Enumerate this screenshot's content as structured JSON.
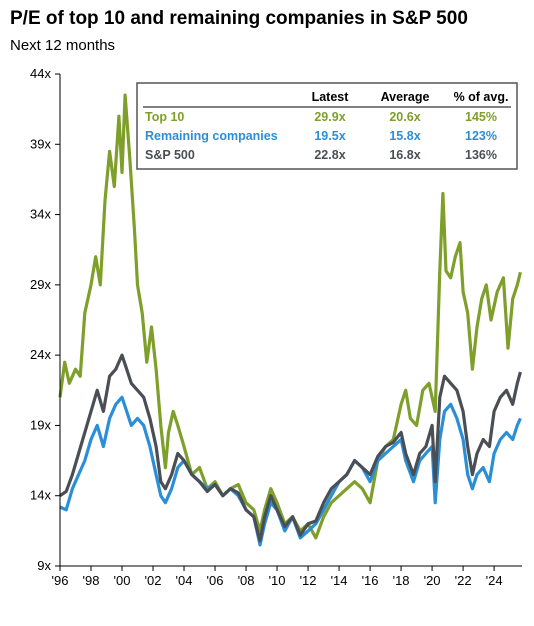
{
  "title": "P/E of top 10 and remaining companies in S&P 500",
  "subtitle": "Next 12 months",
  "colors": {
    "top10": "#7f9f2b",
    "remaining": "#2b8fd6",
    "sp500": "#4a4f55"
  },
  "table": {
    "headers": [
      "Latest",
      "Average",
      "% of avg."
    ],
    "rows": [
      {
        "label": "Top 10",
        "latest": "29.9x",
        "average": "20.6x",
        "pct": "145%",
        "color": "#7f9f2b"
      },
      {
        "label": "Remaining companies",
        "latest": "19.5x",
        "average": "15.8x",
        "pct": "123%",
        "color": "#2b8fd6"
      },
      {
        "label": "S&P 500",
        "latest": "22.8x",
        "average": "16.8x",
        "pct": "136%",
        "color": "#4a4f55"
      }
    ]
  },
  "chart_data": {
    "type": "line",
    "title": "P/E of top 10 and remaining companies in S&P 500",
    "subtitle": "Next 12 months",
    "ylim": [
      9,
      44
    ],
    "xlim": [
      1996,
      2025.8
    ],
    "yticks": [
      9,
      14,
      19,
      24,
      29,
      34,
      39,
      44
    ],
    "ytick_labels": [
      "9x",
      "14x",
      "19x",
      "24x",
      "29x",
      "34x",
      "39x",
      "44x"
    ],
    "xticks": [
      1996,
      1998,
      2000,
      2002,
      2004,
      2006,
      2008,
      2010,
      2012,
      2014,
      2016,
      2018,
      2020,
      2022,
      2024
    ],
    "xtick_labels": [
      "'96",
      "'98",
      "'00",
      "'02",
      "'04",
      "'06",
      "'08",
      "'10",
      "'12",
      "'14",
      "'16",
      "'18",
      "'20",
      "'22",
      "'24"
    ],
    "series": [
      {
        "name": "Top 10",
        "color": "#7f9f2b",
        "points": [
          [
            1996.0,
            21.0
          ],
          [
            1996.3,
            23.5
          ],
          [
            1996.6,
            22.0
          ],
          [
            1997.0,
            23.0
          ],
          [
            1997.3,
            22.5
          ],
          [
            1997.6,
            27.0
          ],
          [
            1998.0,
            29.0
          ],
          [
            1998.3,
            31.0
          ],
          [
            1998.6,
            29.0
          ],
          [
            1998.9,
            35.0
          ],
          [
            1999.2,
            38.5
          ],
          [
            1999.5,
            36.0
          ],
          [
            1999.8,
            41.0
          ],
          [
            2000.0,
            37.0
          ],
          [
            2000.2,
            42.5
          ],
          [
            2000.5,
            38.0
          ],
          [
            2000.8,
            33.0
          ],
          [
            2001.0,
            29.0
          ],
          [
            2001.3,
            27.0
          ],
          [
            2001.6,
            23.5
          ],
          [
            2001.9,
            26.0
          ],
          [
            2002.2,
            23.0
          ],
          [
            2002.5,
            19.0
          ],
          [
            2002.8,
            16.0
          ],
          [
            2003.0,
            18.5
          ],
          [
            2003.3,
            20.0
          ],
          [
            2003.6,
            19.0
          ],
          [
            2004.0,
            17.5
          ],
          [
            2004.5,
            15.5
          ],
          [
            2005.0,
            16.0
          ],
          [
            2005.5,
            14.5
          ],
          [
            2006.0,
            15.0
          ],
          [
            2006.5,
            14.0
          ],
          [
            2007.0,
            14.5
          ],
          [
            2007.5,
            14.8
          ],
          [
            2008.0,
            13.5
          ],
          [
            2008.5,
            13.0
          ],
          [
            2008.9,
            11.5
          ],
          [
            2009.2,
            13.0
          ],
          [
            2009.6,
            14.5
          ],
          [
            2010.0,
            13.5
          ],
          [
            2010.5,
            12.0
          ],
          [
            2011.0,
            12.5
          ],
          [
            2011.5,
            11.5
          ],
          [
            2012.0,
            12.0
          ],
          [
            2012.5,
            11.0
          ],
          [
            2013.0,
            12.5
          ],
          [
            2013.5,
            13.5
          ],
          [
            2014.0,
            14.0
          ],
          [
            2014.5,
            14.5
          ],
          [
            2015.0,
            15.0
          ],
          [
            2015.5,
            14.5
          ],
          [
            2016.0,
            13.5
          ],
          [
            2016.5,
            16.5
          ],
          [
            2017.0,
            17.5
          ],
          [
            2017.5,
            18.0
          ],
          [
            2018.0,
            20.5
          ],
          [
            2018.3,
            21.5
          ],
          [
            2018.6,
            19.5
          ],
          [
            2019.0,
            19.0
          ],
          [
            2019.4,
            21.5
          ],
          [
            2019.8,
            22.0
          ],
          [
            2020.2,
            20.0
          ],
          [
            2020.5,
            30.0
          ],
          [
            2020.7,
            35.5
          ],
          [
            2020.9,
            30.0
          ],
          [
            2021.2,
            29.5
          ],
          [
            2021.5,
            31.0
          ],
          [
            2021.8,
            32.0
          ],
          [
            2022.0,
            28.5
          ],
          [
            2022.3,
            27.0
          ],
          [
            2022.6,
            23.0
          ],
          [
            2022.9,
            26.0
          ],
          [
            2023.2,
            28.0
          ],
          [
            2023.5,
            29.0
          ],
          [
            2023.8,
            26.5
          ],
          [
            2024.2,
            28.5
          ],
          [
            2024.6,
            29.5
          ],
          [
            2024.9,
            24.5
          ],
          [
            2025.2,
            28.0
          ],
          [
            2025.5,
            29.0
          ],
          [
            2025.7,
            29.9
          ]
        ]
      },
      {
        "name": "Remaining companies",
        "color": "#2b8fd6",
        "points": [
          [
            1996.0,
            13.2
          ],
          [
            1996.4,
            13.0
          ],
          [
            1996.8,
            14.5
          ],
          [
            1997.2,
            15.5
          ],
          [
            1997.6,
            16.5
          ],
          [
            1998.0,
            18.0
          ],
          [
            1998.4,
            19.0
          ],
          [
            1998.8,
            17.5
          ],
          [
            1999.2,
            19.5
          ],
          [
            1999.6,
            20.5
          ],
          [
            2000.0,
            21.0
          ],
          [
            2000.3,
            20.0
          ],
          [
            2000.6,
            19.0
          ],
          [
            2001.0,
            19.5
          ],
          [
            2001.4,
            19.0
          ],
          [
            2001.8,
            17.5
          ],
          [
            2002.2,
            15.5
          ],
          [
            2002.5,
            14.0
          ],
          [
            2002.8,
            13.5
          ],
          [
            2003.2,
            14.5
          ],
          [
            2003.6,
            16.0
          ],
          [
            2004.0,
            16.5
          ],
          [
            2004.5,
            15.5
          ],
          [
            2005.0,
            15.0
          ],
          [
            2005.5,
            14.5
          ],
          [
            2006.0,
            14.8
          ],
          [
            2006.5,
            14.0
          ],
          [
            2007.0,
            14.5
          ],
          [
            2007.5,
            14.0
          ],
          [
            2008.0,
            13.0
          ],
          [
            2008.5,
            12.5
          ],
          [
            2008.9,
            10.5
          ],
          [
            2009.2,
            12.0
          ],
          [
            2009.6,
            13.5
          ],
          [
            2010.0,
            13.0
          ],
          [
            2010.5,
            11.5
          ],
          [
            2011.0,
            12.5
          ],
          [
            2011.5,
            11.0
          ],
          [
            2012.0,
            11.5
          ],
          [
            2012.5,
            12.0
          ],
          [
            2013.0,
            13.0
          ],
          [
            2013.5,
            14.0
          ],
          [
            2014.0,
            15.0
          ],
          [
            2014.5,
            15.5
          ],
          [
            2015.0,
            16.5
          ],
          [
            2015.5,
            16.0
          ],
          [
            2016.0,
            15.0
          ],
          [
            2016.5,
            16.5
          ],
          [
            2017.0,
            17.0
          ],
          [
            2017.5,
            17.5
          ],
          [
            2018.0,
            18.0
          ],
          [
            2018.3,
            16.5
          ],
          [
            2018.8,
            15.0
          ],
          [
            2019.2,
            16.5
          ],
          [
            2019.6,
            17.0
          ],
          [
            2020.0,
            17.5
          ],
          [
            2020.2,
            13.5
          ],
          [
            2020.5,
            18.0
          ],
          [
            2020.8,
            20.0
          ],
          [
            2021.2,
            20.5
          ],
          [
            2021.6,
            19.5
          ],
          [
            2022.0,
            18.0
          ],
          [
            2022.3,
            15.5
          ],
          [
            2022.6,
            14.5
          ],
          [
            2022.9,
            15.5
          ],
          [
            2023.3,
            16.0
          ],
          [
            2023.7,
            15.0
          ],
          [
            2024.0,
            17.0
          ],
          [
            2024.4,
            18.0
          ],
          [
            2024.8,
            18.5
          ],
          [
            2025.2,
            18.0
          ],
          [
            2025.5,
            19.0
          ],
          [
            2025.7,
            19.5
          ]
        ]
      },
      {
        "name": "S&P 500",
        "color": "#4a4f55",
        "points": [
          [
            1996.0,
            14.0
          ],
          [
            1996.4,
            14.3
          ],
          [
            1996.8,
            15.5
          ],
          [
            1997.2,
            17.0
          ],
          [
            1997.6,
            18.5
          ],
          [
            1998.0,
            20.0
          ],
          [
            1998.4,
            21.5
          ],
          [
            1998.8,
            20.0
          ],
          [
            1999.2,
            22.5
          ],
          [
            1999.6,
            23.0
          ],
          [
            2000.0,
            24.0
          ],
          [
            2000.3,
            23.0
          ],
          [
            2000.6,
            22.0
          ],
          [
            2001.0,
            21.5
          ],
          [
            2001.4,
            21.0
          ],
          [
            2001.8,
            19.5
          ],
          [
            2002.2,
            17.5
          ],
          [
            2002.5,
            15.0
          ],
          [
            2002.8,
            14.5
          ],
          [
            2003.2,
            15.5
          ],
          [
            2003.6,
            17.0
          ],
          [
            2004.0,
            16.5
          ],
          [
            2004.5,
            15.5
          ],
          [
            2005.0,
            15.0
          ],
          [
            2005.5,
            14.3
          ],
          [
            2006.0,
            14.8
          ],
          [
            2006.5,
            14.0
          ],
          [
            2007.0,
            14.5
          ],
          [
            2007.5,
            14.2
          ],
          [
            2008.0,
            13.0
          ],
          [
            2008.5,
            12.5
          ],
          [
            2008.9,
            10.8
          ],
          [
            2009.2,
            12.5
          ],
          [
            2009.6,
            14.0
          ],
          [
            2010.0,
            13.0
          ],
          [
            2010.5,
            11.8
          ],
          [
            2011.0,
            12.5
          ],
          [
            2011.5,
            11.2
          ],
          [
            2012.0,
            12.0
          ],
          [
            2012.5,
            12.2
          ],
          [
            2013.0,
            13.5
          ],
          [
            2013.5,
            14.5
          ],
          [
            2014.0,
            15.0
          ],
          [
            2014.5,
            15.5
          ],
          [
            2015.0,
            16.5
          ],
          [
            2015.5,
            16.0
          ],
          [
            2016.0,
            15.5
          ],
          [
            2016.5,
            16.8
          ],
          [
            2017.0,
            17.5
          ],
          [
            2017.5,
            17.8
          ],
          [
            2018.0,
            18.5
          ],
          [
            2018.3,
            17.0
          ],
          [
            2018.8,
            15.5
          ],
          [
            2019.2,
            17.0
          ],
          [
            2019.6,
            17.5
          ],
          [
            2020.0,
            19.0
          ],
          [
            2020.2,
            15.0
          ],
          [
            2020.5,
            21.0
          ],
          [
            2020.8,
            22.5
          ],
          [
            2021.2,
            22.0
          ],
          [
            2021.6,
            21.5
          ],
          [
            2022.0,
            20.0
          ],
          [
            2022.3,
            17.5
          ],
          [
            2022.6,
            15.5
          ],
          [
            2022.9,
            17.0
          ],
          [
            2023.3,
            18.0
          ],
          [
            2023.7,
            17.5
          ],
          [
            2024.0,
            20.0
          ],
          [
            2024.4,
            21.0
          ],
          [
            2024.8,
            21.5
          ],
          [
            2025.2,
            20.5
          ],
          [
            2025.5,
            22.0
          ],
          [
            2025.7,
            22.8
          ]
        ]
      }
    ]
  }
}
